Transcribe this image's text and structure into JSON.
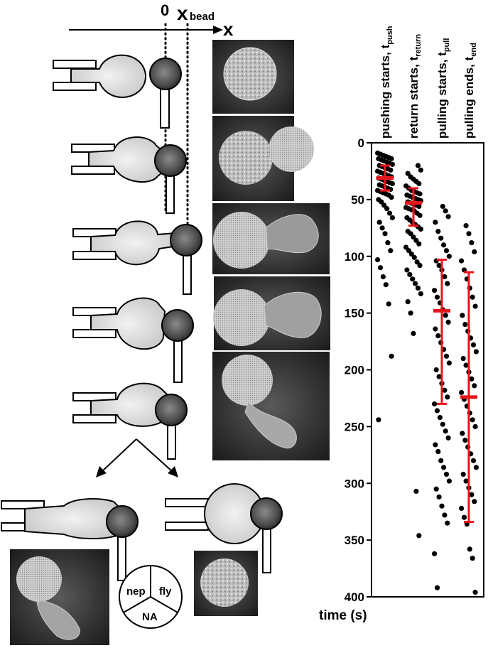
{
  "schematic": {
    "origin_label": "0",
    "bead_label": "x",
    "bead_subscript": "bead",
    "axis_label": "x",
    "pie_labels": [
      "nep",
      "fly",
      "NA"
    ]
  },
  "chart_data": {
    "type": "scatter",
    "ylabel": "time (s)",
    "ylim": [
      0,
      400
    ],
    "y_inverted": true,
    "yticks": [
      0,
      50,
      100,
      150,
      200,
      250,
      300,
      350,
      400
    ],
    "point_color": "#000000",
    "summary_color": "#e8141c",
    "categories": [
      {
        "name": "pushing starts,",
        "sub_name": "t",
        "sub": "push"
      },
      {
        "name": "return starts,",
        "sub_name": "t",
        "sub": "return"
      },
      {
        "name": "pulling starts,",
        "sub_name": "t",
        "sub": "pull"
      },
      {
        "name": "pulling ends,",
        "sub_name": "t",
        "sub": "end"
      }
    ],
    "series": [
      {
        "mean": 31,
        "err_low": 20,
        "err_high": 42,
        "values": [
          9,
          10,
          11,
          12,
          13,
          14,
          14,
          15,
          16,
          17,
          18,
          19,
          20,
          21,
          22,
          23,
          24,
          25,
          26,
          27,
          28,
          29,
          30,
          31,
          32,
          33,
          34,
          35,
          36,
          37,
          38,
          39,
          40,
          41,
          42,
          43,
          44,
          45,
          46,
          48,
          50,
          52,
          55,
          58,
          62,
          66,
          70,
          75,
          80,
          88,
          95,
          103,
          110,
          118,
          125,
          142,
          188,
          244
        ]
      },
      {
        "mean": 53,
        "err_low": 40,
        "err_high": 73,
        "values": [
          20,
          24,
          27,
          30,
          32,
          34,
          36,
          38,
          40,
          42,
          43,
          44,
          45,
          46,
          47,
          48,
          49,
          50,
          51,
          52,
          53,
          54,
          55,
          56,
          57,
          58,
          59,
          60,
          62,
          64,
          66,
          68,
          70,
          72,
          74,
          76,
          78,
          80,
          83,
          86,
          89,
          92,
          95,
          98,
          101,
          105,
          108,
          112,
          116,
          120,
          124,
          128,
          133,
          140,
          150,
          168,
          307,
          346
        ]
      },
      {
        "mean": 148,
        "err_low": 103,
        "err_high": 230,
        "values": [
          56,
          60,
          65,
          70,
          78,
          84,
          90,
          95,
          100,
          104,
          108,
          112,
          118,
          124,
          130,
          136,
          141,
          147,
          152,
          158,
          164,
          170,
          176,
          182,
          188,
          194,
          200,
          206,
          212,
          218,
          224,
          230,
          236,
          242,
          248,
          254,
          260,
          266,
          272,
          280,
          286,
          292,
          298,
          305,
          312,
          320,
          328,
          335,
          362,
          392
        ]
      },
      {
        "mean": 224,
        "err_low": 114,
        "err_high": 334,
        "values": [
          73,
          80,
          88,
          96,
          104,
          112,
          120,
          128,
          136,
          144,
          152,
          160,
          166,
          172,
          178,
          184,
          190,
          196,
          202,
          208,
          214,
          220,
          226,
          232,
          238,
          244,
          250,
          256,
          262,
          268,
          274,
          280,
          286,
          292,
          298,
          304,
          310,
          316,
          322,
          330,
          336,
          358,
          366,
          396
        ]
      }
    ]
  }
}
